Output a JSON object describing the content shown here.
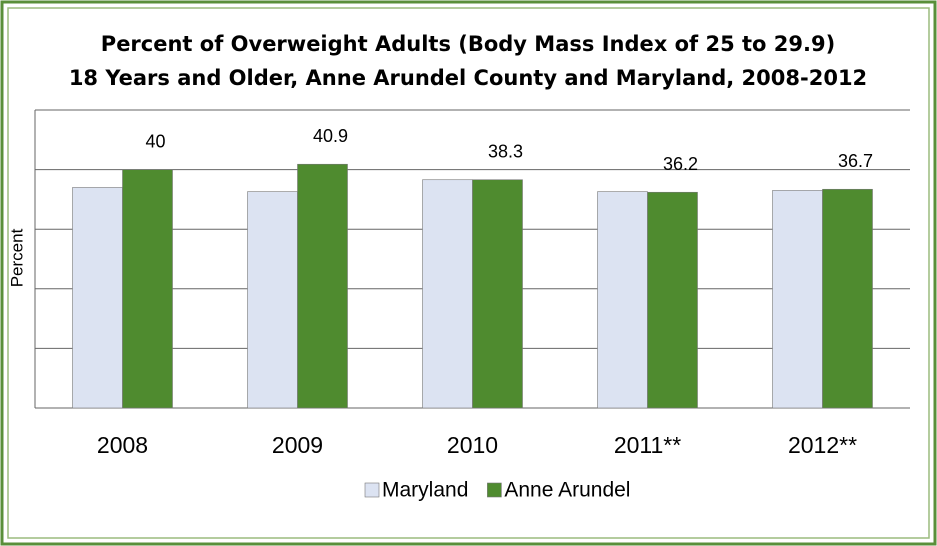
{
  "chart_data": {
    "type": "bar",
    "title": "Percent of Overweight Adults (Body Mass Index of 25 to 29.9)",
    "subtitle": "18 Years and Older, Anne Arundel County and Maryland, 2008-2012",
    "y_label": "Percent",
    "categories": [
      "2008",
      "2009",
      "2010",
      "2011**",
      "2012**"
    ],
    "series": [
      {
        "name": "Maryland",
        "color": "#dce3f2",
        "values": [
          37.0,
          36.3,
          38.3,
          36.3,
          36.5
        ]
      },
      {
        "name": "Anne Arundel",
        "color": "#4f8b2f",
        "values": [
          40,
          40.9,
          38.3,
          36.2,
          36.7
        ],
        "show_labels": true
      }
    ],
    "ylim": [
      0,
      50
    ],
    "yticks": [
      0,
      10,
      20,
      30,
      40,
      50
    ],
    "grid": true,
    "legend": "bottom"
  }
}
